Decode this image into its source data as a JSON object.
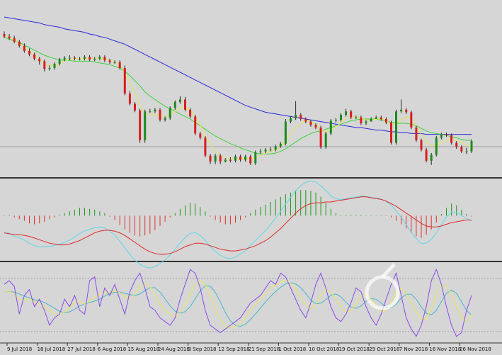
{
  "chart_data": {
    "type": "candlestick",
    "date_labels": [
      "9 Jul 2018",
      "18 Jul 2018",
      "27 Jul 2018",
      "6 Aug 2018",
      "15 Aug 2018",
      "24 Aug 2018",
      "3 Sep 2018",
      "12 Sep 2018",
      "21 Sep 2018",
      "1 Oct 2018",
      "10 Oct 2018",
      "19 Oct 2018",
      "29 Oct 2018",
      "7 Nov 2018",
      "16 Nov 2018",
      "26 Nov 2018"
    ],
    "price": {
      "close": [
        8.2,
        8.0,
        7.6,
        7.1,
        6.5,
        6.1,
        5.6,
        5.3,
        4.4,
        4.5,
        5.0,
        5.5,
        5.7,
        5.7,
        5.6,
        5.6,
        5.8,
        5.5,
        5.6,
        5.8,
        5.4,
        5.2,
        5.2,
        4.5,
        1.5,
        0.3,
        -0.5,
        -4.0,
        -0.6,
        -0.6,
        -0.4,
        -1.6,
        -1.4,
        -0.2,
        0.5,
        0.8,
        -0.4,
        -1.2,
        -3.2,
        -3.7,
        -5.8,
        -6.5,
        -5.8,
        -6.5,
        -6.3,
        -6.4,
        -5.9,
        -6.3,
        -5.9,
        -6.7,
        -5.4,
        -5.3,
        -5.1,
        -5.1,
        -4.7,
        -4.4,
        -1.8,
        -1.4,
        -1.0,
        -1.5,
        -1.8,
        -2.2,
        -2.5,
        -4.8,
        -3.2,
        -1.7,
        -1.6,
        -1.0,
        -0.6,
        -1.3,
        -1.3,
        -2.0,
        -1.8,
        -1.5,
        -1.3,
        -1.5,
        -1.9,
        -4.3,
        -0.6,
        -0.4,
        -0.7,
        -2.5,
        -4.0,
        -5.1,
        -6.4,
        -5.7,
        -3.7,
        -3.3,
        -3.4,
        -4.3,
        -4.8,
        -5.3,
        -5.3,
        -4.1
      ],
      "open": [
        8.5,
        8.2,
        8.0,
        7.6,
        7.1,
        6.5,
        6.1,
        5.6,
        5.3,
        4.4,
        4.5,
        5.0,
        5.5,
        5.7,
        5.7,
        5.6,
        5.6,
        5.8,
        5.5,
        5.6,
        5.8,
        5.4,
        5.2,
        5.2,
        4.5,
        1.5,
        0.3,
        -0.5,
        -4.0,
        -0.6,
        -0.6,
        -0.4,
        -1.6,
        -1.4,
        -0.2,
        0.5,
        0.8,
        -0.4,
        -1.2,
        -3.2,
        -3.7,
        -5.8,
        -6.5,
        -5.8,
        -6.5,
        -6.3,
        -6.4,
        -5.9,
        -6.3,
        -5.9,
        -6.7,
        -5.4,
        -5.3,
        -5.1,
        -5.1,
        -4.7,
        -4.4,
        -1.8,
        -1.4,
        -1.0,
        -1.5,
        -1.8,
        -2.2,
        -2.5,
        -4.8,
        -3.2,
        -1.7,
        -1.6,
        -1.0,
        -0.6,
        -1.3,
        -1.3,
        -2.0,
        -1.8,
        -1.5,
        -1.3,
        -1.5,
        -1.9,
        -4.3,
        -0.6,
        -0.4,
        -0.7,
        -2.5,
        -4.0,
        -5.1,
        -6.4,
        -5.7,
        -3.7,
        -3.3,
        -3.4,
        -4.3,
        -4.8,
        -5.3,
        -5.3
      ],
      "high": [
        8.8,
        8.5,
        8.3,
        7.8,
        7.4,
        6.8,
        6.3,
        5.8,
        5.5,
        4.8,
        5.2,
        5.7,
        5.9,
        6.0,
        5.9,
        5.8,
        6.0,
        6.0,
        5.8,
        6.0,
        6.0,
        5.6,
        5.4,
        5.4,
        4.8,
        1.8,
        0.5,
        -0.3,
        -0.4,
        -0.3,
        -0.2,
        -0.2,
        -1.2,
        0.0,
        0.7,
        1.2,
        1.1,
        -0.2,
        -1.0,
        -3.0,
        -3.5,
        -5.6,
        -5.6,
        -5.6,
        -6.1,
        -6.0,
        -5.7,
        -5.7,
        -5.7,
        -5.7,
        -5.2,
        -5.0,
        -4.9,
        -4.8,
        -4.5,
        -4.2,
        -1.5,
        -1.2,
        0.6,
        -0.8,
        -1.3,
        -1.6,
        -2.0,
        -2.3,
        -3.0,
        -1.5,
        -1.4,
        -0.8,
        -0.3,
        -0.4,
        -1.1,
        -1.1,
        -1.6,
        -1.3,
        -1.1,
        -1.1,
        -1.3,
        -1.7,
        -0.4,
        0.8,
        -0.2,
        -0.5,
        -2.3,
        -3.8,
        -4.9,
        -5.5,
        -3.5,
        -3.1,
        -3.1,
        -3.2,
        -4.1,
        -4.6,
        -4.9,
        -3.9
      ],
      "low": [
        8.0,
        7.8,
        7.4,
        6.9,
        6.3,
        5.9,
        5.4,
        4.9,
        4.1,
        4.2,
        4.3,
        4.8,
        5.3,
        5.4,
        5.4,
        5.4,
        5.4,
        5.3,
        5.3,
        5.4,
        5.2,
        5.0,
        5.0,
        4.3,
        1.3,
        0.1,
        -0.7,
        -4.3,
        -4.3,
        -0.8,
        -0.8,
        -1.8,
        -1.8,
        -1.6,
        -0.4,
        0.3,
        -0.6,
        -1.4,
        -3.4,
        -3.9,
        -6.0,
        -6.8,
        -6.8,
        -6.8,
        -6.6,
        -6.6,
        -6.6,
        -6.5,
        -6.5,
        -6.9,
        -6.9,
        -5.6,
        -5.5,
        -5.3,
        -5.3,
        -4.9,
        -4.6,
        -2.0,
        -1.6,
        -1.7,
        -2.0,
        -2.4,
        -2.7,
        -5.0,
        -5.0,
        -3.4,
        -1.9,
        -1.8,
        -1.2,
        -1.5,
        -1.5,
        -2.2,
        -2.2,
        -1.7,
        -1.5,
        -1.7,
        -2.1,
        -4.5,
        -4.5,
        -0.8,
        -0.9,
        -2.7,
        -4.2,
        -5.3,
        -6.6,
        -6.9,
        -5.9,
        -3.9,
        -3.6,
        -4.5,
        -5.0,
        -5.5,
        -5.6,
        -5.5
      ],
      "ma_green": [
        8.1,
        7.9,
        7.7,
        7.5,
        7.2,
        6.9,
        6.6,
        6.3,
        6.0,
        5.8,
        5.6,
        5.5,
        5.4,
        5.4,
        5.3,
        5.3,
        5.3,
        5.3,
        5.2,
        5.1,
        5.0,
        4.9,
        4.7,
        4.5,
        4.1,
        3.6,
        3.0,
        2.4,
        1.7,
        1.2,
        0.8,
        0.4,
        0.0,
        -0.3,
        -0.6,
        -0.9,
        -1.2,
        -1.5,
        -1.9,
        -2.3,
        -2.7,
        -3.1,
        -3.5,
        -3.8,
        -4.1,
        -4.4,
        -4.6,
        -4.9,
        -5.1,
        -5.3,
        -5.5,
        -5.6,
        -5.6,
        -5.6,
        -5.5,
        -5.3,
        -5.0,
        -4.6,
        -4.2,
        -3.8,
        -3.5,
        -3.2,
        -3.0,
        -2.9,
        -2.7,
        -2.5,
        -2.3,
        -2.1,
        -1.9,
        -1.7,
        -1.6,
        -1.5,
        -1.5,
        -1.5,
        -1.5,
        -1.6,
        -1.7,
        -1.9,
        -2.0,
        -2.0,
        -2.0,
        -2.1,
        -2.3,
        -2.6,
        -2.9,
        -3.1,
        -3.2,
        -3.3,
        -3.4,
        -3.6,
        -3.7,
        -3.9,
        -4.0,
        -4.0
      ],
      "ma_blue": [
        10.5,
        10.4,
        10.3,
        10.2,
        10.1,
        10.0,
        9.9,
        9.8,
        9.6,
        9.5,
        9.4,
        9.3,
        9.1,
        9.0,
        8.9,
        8.8,
        8.7,
        8.5,
        8.4,
        8.2,
        8.1,
        7.9,
        7.7,
        7.5,
        7.3,
        7.0,
        6.7,
        6.4,
        6.1,
        5.8,
        5.5,
        5.2,
        4.9,
        4.6,
        4.3,
        4.0,
        3.7,
        3.4,
        3.1,
        2.8,
        2.5,
        2.2,
        1.9,
        1.6,
        1.3,
        1.0,
        0.7,
        0.4,
        0.1,
        -0.1,
        -0.3,
        -0.5,
        -0.7,
        -0.8,
        -0.9,
        -1.0,
        -1.1,
        -1.2,
        -1.3,
        -1.4,
        -1.5,
        -1.6,
        -1.7,
        -1.8,
        -1.9,
        -2.0,
        -2.1,
        -2.2,
        -2.3,
        -2.4,
        -2.5,
        -2.5,
        -2.6,
        -2.7,
        -2.8,
        -2.8,
        -2.9,
        -3.0,
        -3.0,
        -3.1,
        -3.1,
        -3.2,
        -3.2,
        -3.2,
        -3.3,
        -3.3,
        -3.3,
        -3.3,
        -3.3,
        -3.3,
        -3.3,
        -3.3,
        -3.3,
        -3.3
      ],
      "ma_yellow": [
        8.3,
        8.1,
        7.8,
        7.4,
        6.9,
        6.5,
        6.0,
        5.5,
        5.0,
        4.8,
        4.8,
        5.0,
        5.3,
        5.5,
        5.6,
        5.6,
        5.6,
        5.7,
        5.6,
        5.6,
        5.6,
        5.4,
        5.2,
        4.9,
        4.0,
        2.8,
        1.6,
        0.2,
        -0.8,
        -1.0,
        -1.0,
        -1.0,
        -1.2,
        -1.0,
        -0.6,
        -0.2,
        -0.1,
        -0.4,
        -1.2,
        -2.2,
        -3.4,
        -4.5,
        -5.2,
        -5.8,
        -6.1,
        -6.2,
        -6.2,
        -6.2,
        -6.1,
        -6.2,
        -6.0,
        -5.8,
        -5.5,
        -5.3,
        -5.1,
        -4.8,
        -4.0,
        -3.2,
        -2.5,
        -2.0,
        -1.7,
        -1.8,
        -2.0,
        -2.8,
        -3.0,
        -2.8,
        -2.4,
        -1.9,
        -1.4,
        -1.3,
        -1.2,
        -1.4,
        -1.6,
        -1.6,
        -1.5,
        -1.5,
        -1.6,
        -2.2,
        -2.0,
        -1.6,
        -1.2,
        -1.5,
        -2.4,
        -3.3,
        -4.2,
        -4.7,
        -4.6,
        -4.3,
        -4.0,
        -3.9,
        -4.0,
        -4.3,
        -4.6,
        -4.8
      ],
      "ymin": -8.0,
      "ymax": 11.5
    },
    "macd": {
      "histogram": [
        -0.05,
        0.1,
        -0.2,
        -0.4,
        -0.6,
        -0.9,
        -1.0,
        -0.9,
        -0.7,
        -0.4,
        -0.2,
        0.1,
        0.3,
        0.5,
        0.7,
        0.9,
        0.9,
        0.8,
        0.7,
        0.5,
        0.3,
        -0.1,
        -0.5,
        -1.1,
        -1.6,
        -2.0,
        -2.3,
        -2.4,
        -2.3,
        -2.1,
        -1.7,
        -1.2,
        -0.7,
        -0.2,
        0.3,
        0.8,
        1.2,
        1.5,
        1.4,
        1.0,
        0.5,
        -0.1,
        -0.5,
        -0.8,
        -1.0,
        -1.0,
        -0.8,
        -0.5,
        -0.2,
        0.3,
        0.7,
        1.0,
        1.3,
        1.6,
        1.9,
        2.2,
        2.5,
        2.7,
        2.9,
        3.0,
        3.0,
        2.9,
        2.7,
        2.2,
        1.5,
        0.8,
        0.3,
        0.1,
        0.1,
        0.1,
        0.1,
        0.1,
        0.05,
        0.05,
        0.05,
        0.05,
        -0.05,
        -0.2,
        -0.6,
        -1.0,
        -1.5,
        -2.0,
        -2.4,
        -2.6,
        -2.2,
        -1.6,
        -0.8,
        0.2,
        0.9,
        1.4,
        1.2,
        0.7,
        0.2,
        -0.1
      ],
      "signal": [
        -2.0,
        -2.1,
        -2.2,
        -2.2,
        -2.3,
        -2.4,
        -2.6,
        -2.8,
        -3.0,
        -3.2,
        -3.3,
        -3.4,
        -3.4,
        -3.3,
        -3.1,
        -2.9,
        -2.6,
        -2.3,
        -2.0,
        -1.8,
        -1.7,
        -1.7,
        -1.8,
        -2.0,
        -2.3,
        -2.7,
        -3.1,
        -3.5,
        -3.9,
        -4.2,
        -4.4,
        -4.5,
        -4.5,
        -4.4,
        -4.2,
        -3.9,
        -3.6,
        -3.4,
        -3.2,
        -3.2,
        -3.3,
        -3.5,
        -3.7,
        -3.9,
        -4.0,
        -4.1,
        -4.1,
        -4.0,
        -3.9,
        -3.7,
        -3.5,
        -3.2,
        -2.9,
        -2.5,
        -2.0,
        -1.5,
        -0.9,
        -0.3,
        0.3,
        0.8,
        1.2,
        1.4,
        1.5,
        1.5,
        1.6,
        1.6,
        1.7,
        1.8,
        1.9,
        2.0,
        2.1,
        2.2,
        2.2,
        2.1,
        2.0,
        1.9,
        1.7,
        1.4,
        1.1,
        0.7,
        0.3,
        -0.1,
        -0.5,
        -0.9,
        -1.2,
        -1.3,
        -1.3,
        -1.2,
        -1.0,
        -0.8,
        -0.7,
        -0.6,
        -0.5,
        -0.5
      ],
      "ymin": -5.0,
      "ymax": 3.5
    },
    "stochastic": {
      "k": [
        75,
        80,
        72,
        35,
        60,
        68,
        45,
        55,
        40,
        20,
        30,
        35,
        55,
        45,
        60,
        40,
        35,
        80,
        85,
        45,
        70,
        60,
        75,
        55,
        35,
        65,
        80,
        90,
        70,
        45,
        40,
        30,
        25,
        20,
        30,
        55,
        75,
        95,
        90,
        70,
        40,
        20,
        15,
        10,
        15,
        20,
        25,
        30,
        40,
        50,
        55,
        60,
        70,
        80,
        75,
        90,
        85,
        70,
        55,
        40,
        30,
        50,
        75,
        90,
        70,
        45,
        30,
        25,
        35,
        50,
        70,
        65,
        45,
        30,
        20,
        35,
        55,
        75,
        90,
        60,
        30,
        15,
        5,
        20,
        45,
        80,
        95,
        75,
        45,
        20,
        5,
        10,
        40,
        60
      ],
      "d": [
        65,
        66,
        62,
        55,
        54,
        56,
        52,
        50,
        45,
        40,
        36,
        34,
        38,
        44,
        50,
        52,
        48,
        52,
        58,
        62,
        65,
        64,
        66,
        64,
        58,
        56,
        62,
        72,
        76,
        72,
        62,
        48,
        40,
        35,
        32,
        38,
        48,
        62,
        75,
        80,
        75,
        60,
        42,
        28,
        18,
        16,
        18,
        22,
        30,
        40,
        48,
        55,
        62,
        70,
        74,
        78,
        80,
        76,
        68,
        58,
        48,
        42,
        48,
        60,
        68,
        65,
        55,
        45,
        38,
        40,
        48,
        58,
        62,
        55,
        45,
        38,
        40,
        50,
        65,
        70,
        62,
        50,
        38,
        28,
        28,
        42,
        62,
        75,
        72,
        60,
        45,
        30,
        25,
        35
      ],
      "ymin": 0,
      "ymax": 100
    }
  }
}
